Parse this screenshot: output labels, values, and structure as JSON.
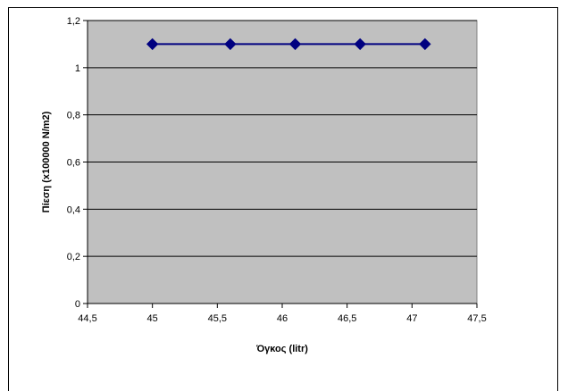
{
  "chart_data": {
    "type": "line",
    "title": "",
    "xlabel": "Όγκος (litr)",
    "ylabel": "Πίεση (x100000 N/m2)",
    "xlim": [
      44.5,
      47.5
    ],
    "ylim": [
      0,
      1.2
    ],
    "x_ticks": [
      "44,5",
      "45",
      "45,5",
      "46",
      "46,5",
      "47",
      "47,5"
    ],
    "x_tick_values": [
      44.5,
      45,
      45.5,
      46,
      46.5,
      47,
      47.5
    ],
    "y_ticks": [
      "0",
      "0,2",
      "0,4",
      "0,6",
      "0,8",
      "1",
      "1,2"
    ],
    "y_tick_values": [
      0,
      0.2,
      0.4,
      0.6,
      0.8,
      1.0,
      1.2
    ],
    "grid": "horizontal",
    "legend": "none",
    "series": [
      {
        "x": [
          45.0,
          45.6,
          46.1,
          46.6,
          47.1
        ],
        "y": [
          1.1,
          1.1,
          1.1,
          1.1,
          1.1
        ],
        "marker": "diamond",
        "color": "#000080"
      }
    ],
    "colors": {
      "plot_background": "#c0c0c0",
      "line": "#000080"
    }
  }
}
